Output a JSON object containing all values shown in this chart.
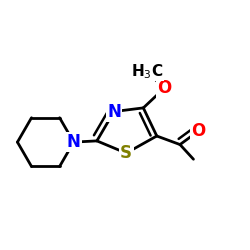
{
  "background": "#ffffff",
  "atom_colors": {
    "C": "#000000",
    "N": "#0000ff",
    "S": "#808000",
    "O": "#ff0000"
  },
  "bond_color": "#000000",
  "bond_width": 2.0,
  "figsize": [
    2.5,
    2.5
  ],
  "dpi": 100,
  "font_size_atom": 12,
  "xlim": [
    0.0,
    1.0
  ],
  "ylim": [
    0.1,
    0.9
  ]
}
